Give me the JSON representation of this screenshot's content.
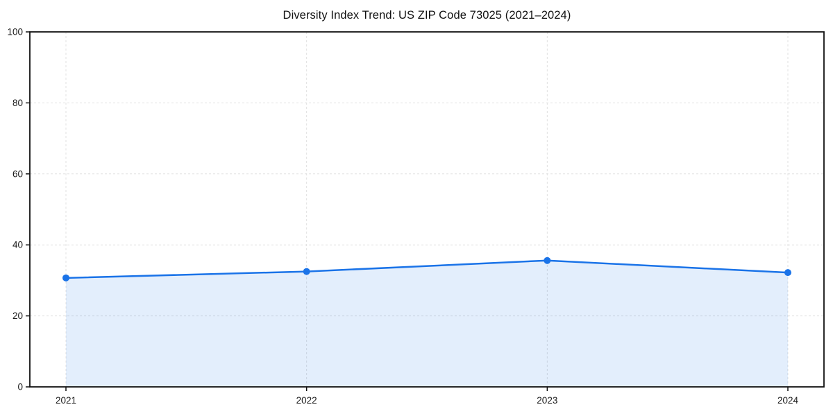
{
  "chart_data": {
    "type": "area",
    "title": "Diversity Index Trend: US ZIP Code 73025 (2021–2024)",
    "categories": [
      "2021",
      "2022",
      "2023",
      "2024"
    ],
    "series": [
      {
        "name": "Diversity Index",
        "values": [
          30.7,
          32.5,
          35.6,
          32.2
        ]
      }
    ],
    "xlabel": "",
    "ylabel": "",
    "ylim": [
      0,
      100
    ],
    "yticks": [
      0,
      20,
      40,
      60,
      80,
      100
    ],
    "grid": "dashed, horizontal and vertical",
    "legend": "none",
    "axes_box": true,
    "marker": "circle",
    "colors": {
      "line": "#1a73e8",
      "marker": "#1a73e8",
      "area_fill": "rgba(26, 115, 232, 0.12)",
      "gridline": "#e0e0e0",
      "spine": "#111111",
      "tick_text": "#1a1a1a",
      "background": "#ffffff"
    }
  }
}
